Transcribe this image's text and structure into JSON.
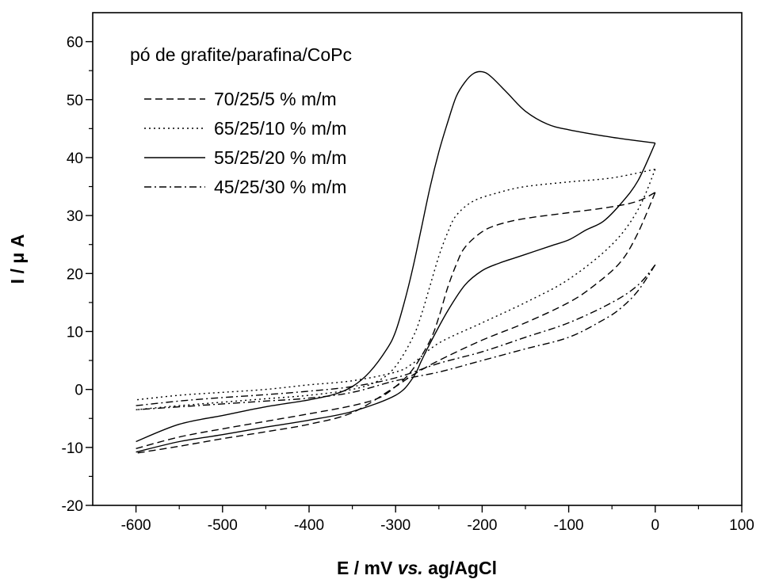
{
  "chart_data": {
    "type": "line",
    "title": "",
    "xlabel_parts": [
      "E / mV ",
      "vs.",
      " ag/AgCl"
    ],
    "ylabel": "I / μ A",
    "xlim": [
      -650,
      100
    ],
    "ylim": [
      -20,
      65
    ],
    "xticks": [
      -600,
      -500,
      -400,
      -300,
      -200,
      -100,
      0,
      100
    ],
    "yticks": [
      -20,
      -10,
      0,
      10,
      20,
      30,
      40,
      50,
      60
    ],
    "grid": false,
    "legend": {
      "placement": "top-left",
      "title": "pó de grafite/parafina/CoPc"
    },
    "series": [
      {
        "name": "70/25/5  % m/m",
        "dash": "dashed",
        "forward": [
          [
            -600,
            -10.2
          ],
          [
            -550,
            -8.2
          ],
          [
            -500,
            -6.8
          ],
          [
            -450,
            -5.5
          ],
          [
            -400,
            -4.2
          ],
          [
            -350,
            -2.8
          ],
          [
            -320,
            -1.5
          ],
          [
            -300,
            0.5
          ],
          [
            -280,
            3.5
          ],
          [
            -260,
            8.5
          ],
          [
            -250,
            12.5
          ],
          [
            -240,
            17.5
          ],
          [
            -230,
            21.5
          ],
          [
            -220,
            24.5
          ],
          [
            -200,
            27.2
          ],
          [
            -180,
            28.5
          ],
          [
            -150,
            29.5
          ],
          [
            -100,
            30.5
          ],
          [
            -50,
            31.5
          ],
          [
            -20,
            32.5
          ],
          [
            0,
            34
          ]
        ],
        "reverse": [
          [
            0,
            34
          ],
          [
            -20,
            27
          ],
          [
            -40,
            22
          ],
          [
            -70,
            18
          ],
          [
            -100,
            15
          ],
          [
            -150,
            11.5
          ],
          [
            -200,
            8.5
          ],
          [
            -250,
            5
          ],
          [
            -280,
            2.5
          ],
          [
            -300,
            0.5
          ],
          [
            -350,
            -4
          ],
          [
            -400,
            -6
          ],
          [
            -450,
            -7.3
          ],
          [
            -500,
            -8.5
          ],
          [
            -550,
            -9.8
          ],
          [
            -600,
            -11
          ]
        ]
      },
      {
        "name": "65/25/10 % m/m",
        "dash": "dotted",
        "forward": [
          [
            -600,
            -3.5
          ],
          [
            -550,
            -2.8
          ],
          [
            -500,
            -2.2
          ],
          [
            -450,
            -1.6
          ],
          [
            -400,
            -1
          ],
          [
            -350,
            0
          ],
          [
            -320,
            1.5
          ],
          [
            -300,
            4
          ],
          [
            -280,
            9
          ],
          [
            -270,
            13
          ],
          [
            -260,
            18
          ],
          [
            -250,
            23
          ],
          [
            -240,
            27
          ],
          [
            -230,
            30
          ],
          [
            -210,
            32.5
          ],
          [
            -180,
            34
          ],
          [
            -150,
            35
          ],
          [
            -100,
            35.8
          ],
          [
            -50,
            36.5
          ],
          [
            0,
            38
          ]
        ],
        "reverse": [
          [
            0,
            38
          ],
          [
            -20,
            31
          ],
          [
            -50,
            25
          ],
          [
            -100,
            19
          ],
          [
            -150,
            15
          ],
          [
            -200,
            11.5
          ],
          [
            -250,
            8
          ],
          [
            -280,
            4.5
          ],
          [
            -300,
            3
          ],
          [
            -350,
            1.5
          ],
          [
            -400,
            0.8
          ],
          [
            -450,
            0
          ],
          [
            -500,
            -0.5
          ],
          [
            -550,
            -1
          ],
          [
            -600,
            -1.8
          ]
        ]
      },
      {
        "name": "55/25/20 % m/m",
        "dash": "solid",
        "forward": [
          [
            -600,
            -9
          ],
          [
            -550,
            -6
          ],
          [
            -500,
            -4.5
          ],
          [
            -450,
            -3
          ],
          [
            -400,
            -1.8
          ],
          [
            -370,
            -0.8
          ],
          [
            -350,
            0.5
          ],
          [
            -330,
            3
          ],
          [
            -310,
            7
          ],
          [
            -300,
            10
          ],
          [
            -290,
            15
          ],
          [
            -280,
            21
          ],
          [
            -270,
            28
          ],
          [
            -260,
            35
          ],
          [
            -250,
            41
          ],
          [
            -240,
            46
          ],
          [
            -230,
            50.5
          ],
          [
            -220,
            53
          ],
          [
            -210,
            54.5
          ],
          [
            -200,
            54.8
          ],
          [
            -190,
            54
          ],
          [
            -170,
            51
          ],
          [
            -150,
            48
          ],
          [
            -125,
            45.8
          ],
          [
            -100,
            44.8
          ],
          [
            -50,
            43.5
          ],
          [
            0,
            42.5
          ]
        ],
        "reverse": [
          [
            0,
            42.5
          ],
          [
            -20,
            36
          ],
          [
            -40,
            32
          ],
          [
            -60,
            29
          ],
          [
            -80,
            27.5
          ],
          [
            -100,
            25.8
          ],
          [
            -120,
            24.8
          ],
          [
            -140,
            23.8
          ],
          [
            -160,
            22.8
          ],
          [
            -180,
            21.8
          ],
          [
            -200,
            20.5
          ],
          [
            -220,
            18
          ],
          [
            -240,
            13.5
          ],
          [
            -260,
            8
          ],
          [
            -270,
            5
          ],
          [
            -280,
            2
          ],
          [
            -300,
            -1
          ],
          [
            -350,
            -3.8
          ],
          [
            -400,
            -5.3
          ],
          [
            -450,
            -6.5
          ],
          [
            -500,
            -7.8
          ],
          [
            -550,
            -9
          ],
          [
            -600,
            -10.8
          ]
        ]
      },
      {
        "name": "45/25/30 % m/m",
        "dash": "dashdot",
        "forward": [
          [
            -600,
            -2.8
          ],
          [
            -550,
            -2
          ],
          [
            -500,
            -1.4
          ],
          [
            -450,
            -0.9
          ],
          [
            -400,
            -0.3
          ],
          [
            -350,
            0.5
          ],
          [
            -300,
            2
          ],
          [
            -250,
            4.5
          ],
          [
            -200,
            6.5
          ],
          [
            -150,
            9
          ],
          [
            -100,
            11.5
          ],
          [
            -50,
            15
          ],
          [
            -20,
            18
          ],
          [
            0,
            21.5
          ]
        ],
        "reverse": [
          [
            0,
            21.5
          ],
          [
            -20,
            17
          ],
          [
            -40,
            14
          ],
          [
            -60,
            12
          ],
          [
            -100,
            9
          ],
          [
            -150,
            7
          ],
          [
            -200,
            5
          ],
          [
            -250,
            3
          ],
          [
            -300,
            1.5
          ],
          [
            -350,
            -0.5
          ],
          [
            -400,
            -1.5
          ],
          [
            -450,
            -2
          ],
          [
            -500,
            -2.5
          ],
          [
            -550,
            -3
          ],
          [
            -600,
            -3.5
          ]
        ]
      }
    ]
  }
}
